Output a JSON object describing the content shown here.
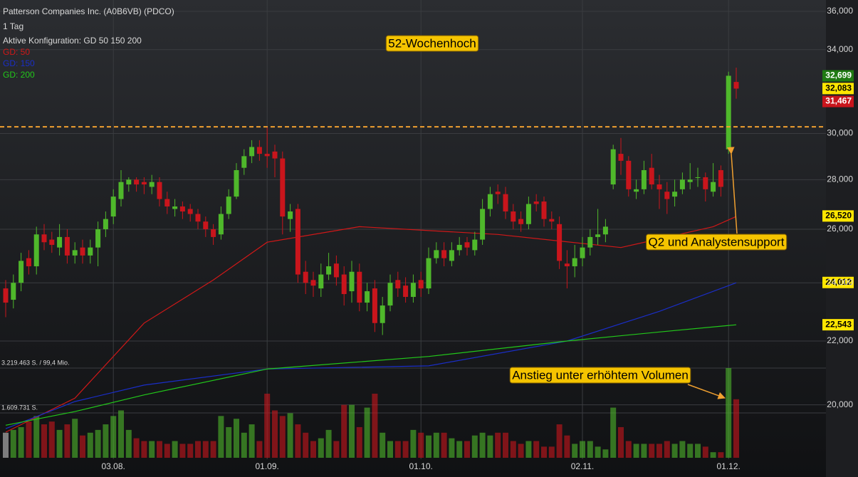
{
  "chart_data": {
    "type": "candlestick",
    "title": "Patterson Companies Inc. (A0B6VB) (PDCO)",
    "subtitle": "1 Tag",
    "config_label": "Aktive Konfiguration: GD 50 150 200",
    "log": true,
    "grid": true,
    "up_color": "#4fb82b",
    "down_color": "#c9151c",
    "categories": [
      null,
      null,
      null,
      null,
      null,
      null,
      null,
      null,
      null,
      null,
      null,
      null,
      null,
      null,
      "03.08.",
      null,
      null,
      null,
      null,
      null,
      null,
      null,
      null,
      null,
      null,
      null,
      null,
      null,
      null,
      null,
      null,
      null,
      null,
      null,
      "01.09.",
      null,
      null,
      null,
      null,
      null,
      null,
      null,
      null,
      null,
      null,
      null,
      null,
      null,
      null,
      null,
      null,
      null,
      null,
      null,
      "01.10.",
      null,
      null,
      null,
      null,
      null,
      null,
      null,
      null,
      null,
      null,
      null,
      null,
      null,
      null,
      null,
      null,
      null,
      null,
      null,
      null,
      "02.11.",
      null,
      null,
      null,
      null,
      null,
      null,
      null,
      null,
      null,
      null,
      null,
      null,
      null,
      null,
      null,
      null,
      null,
      null,
      "01.12.",
      null
    ],
    "open": [
      23.8,
      23.4,
      24.0,
      24.9,
      24.6,
      25.8,
      25.6,
      25.3,
      25.7,
      25.0,
      25.3,
      25.0,
      25.3,
      26.0,
      26.5,
      27.2,
      27.8,
      28.0,
      27.9,
      27.7,
      27.9,
      27.2,
      26.8,
      26.9,
      26.8,
      26.6,
      26.3,
      26.0,
      25.8,
      26.6,
      27.3,
      28.5,
      29.0,
      29.4,
      29.1,
      29.2,
      28.9,
      26.4,
      26.8,
      24.4,
      24.1,
      23.8,
      24.3,
      24.7,
      24.3,
      23.7,
      24.4,
      23.3,
      23.8,
      22.6,
      23.2,
      24.1,
      23.9,
      23.5,
      24.1,
      23.8,
      24.9,
      25.2,
      24.8,
      25.2,
      25.5,
      25.2,
      25.6,
      26.8,
      27.5,
      27.4,
      26.7,
      26.4,
      26.2,
      27.1,
      27.1,
      26.4,
      26.2,
      24.7,
      24.6,
      24.9,
      25.3,
      25.7,
      25.8,
      27.8,
      29.1,
      28.8,
      27.5,
      27.6,
      28.5,
      27.8,
      27.5,
      27.3,
      27.6,
      27.9,
      28.1,
      28.1,
      27.5,
      28.4,
      29.3,
      32.4
    ],
    "high": [
      24.1,
      24.3,
      25.1,
      25.2,
      26.1,
      26.2,
      25.9,
      26.2,
      26.0,
      25.5,
      25.6,
      25.6,
      26.3,
      26.7,
      27.6,
      28.4,
      28.1,
      28.1,
      28.1,
      28.2,
      28.1,
      27.5,
      27.2,
      27.1,
      27.0,
      26.8,
      26.5,
      26.2,
      26.9,
      27.6,
      28.7,
      29.3,
      29.7,
      29.7,
      30.3,
      29.5,
      29.2,
      27.0,
      27.0,
      24.8,
      24.4,
      24.7,
      25.1,
      25.0,
      24.6,
      24.8,
      24.7,
      24.0,
      24.1,
      23.5,
      24.3,
      24.4,
      24.2,
      24.3,
      24.4,
      25.3,
      25.5,
      25.5,
      25.5,
      25.7,
      25.7,
      25.9,
      27.2,
      27.7,
      27.8,
      27.7,
      27.0,
      26.7,
      27.3,
      27.4,
      27.3,
      26.7,
      26.5,
      25.2,
      25.4,
      25.7,
      26.0,
      26.8,
      26.4,
      29.5,
      29.8,
      29.0,
      28.0,
      28.8,
      29.1,
      28.2,
      27.9,
      28.0,
      28.3,
      28.7,
      28.5,
      28.3,
      28.7,
      28.6,
      32.9,
      33.1
    ],
    "low": [
      22.8,
      23.1,
      23.7,
      24.3,
      24.3,
      25.2,
      25.1,
      25.0,
      24.7,
      24.7,
      24.7,
      24.7,
      24.6,
      25.7,
      26.2,
      26.9,
      27.5,
      27.5,
      27.4,
      27.4,
      26.9,
      26.6,
      26.5,
      26.4,
      26.3,
      26.0,
      25.7,
      25.4,
      25.6,
      26.4,
      27.2,
      28.2,
      28.7,
      28.8,
      28.5,
      28.1,
      25.8,
      25.9,
      24.0,
      23.6,
      23.5,
      23.5,
      24.1,
      23.9,
      23.2,
      23.3,
      23.0,
      23.0,
      22.3,
      22.2,
      23.0,
      23.5,
      23.3,
      23.3,
      23.5,
      23.6,
      24.7,
      24.6,
      24.6,
      25.0,
      25.0,
      25.0,
      25.4,
      26.5,
      27.0,
      26.4,
      26.0,
      25.9,
      26.0,
      26.7,
      26.1,
      26.0,
      24.5,
      23.8,
      24.2,
      24.6,
      25.0,
      25.4,
      25.5,
      27.6,
      28.2,
      27.3,
      27.2,
      27.4,
      27.6,
      26.8,
      26.6,
      26.9,
      27.4,
      27.6,
      27.7,
      27.1,
      27.3,
      27.3,
      29.1,
      31.6
    ],
    "close": [
      23.3,
      24.0,
      24.8,
      24.6,
      25.8,
      25.5,
      25.4,
      25.7,
      25.0,
      25.2,
      25.0,
      25.3,
      26.0,
      26.4,
      27.3,
      27.9,
      28.0,
      27.8,
      27.8,
      27.9,
      27.2,
      26.9,
      26.9,
      26.7,
      26.6,
      26.3,
      26.0,
      25.7,
      26.6,
      27.3,
      28.4,
      29.0,
      29.4,
      29.1,
      29.0,
      28.9,
      26.5,
      26.7,
      24.3,
      24.0,
      23.9,
      24.3,
      24.6,
      24.2,
      23.6,
      24.4,
      23.3,
      23.7,
      22.6,
      23.2,
      24.0,
      23.8,
      23.5,
      24.0,
      23.8,
      24.9,
      25.2,
      24.9,
      25.2,
      25.4,
      25.3,
      25.6,
      26.8,
      27.4,
      27.4,
      26.7,
      26.3,
      26.2,
      27.0,
      27.0,
      26.4,
      26.3,
      24.8,
      24.6,
      24.9,
      25.3,
      25.7,
      25.8,
      26.1,
      29.3,
      28.8,
      27.6,
      27.6,
      28.4,
      27.8,
      27.6,
      27.2,
      27.5,
      28.0,
      28.0,
      28.1,
      27.6,
      27.9,
      27.7,
      32.7,
      32.08
    ],
    "volume": [
      900000,
      1000000,
      1100000,
      1300000,
      1500000,
      1200000,
      1300000,
      1000000,
      1200000,
      1400000,
      800000,
      900000,
      1000000,
      1200000,
      1500000,
      1700000,
      1000000,
      700000,
      600000,
      600000,
      600000,
      500000,
      600000,
      500000,
      500000,
      600000,
      600000,
      600000,
      1500000,
      1100000,
      1400000,
      900000,
      1200000,
      600000,
      2300000,
      1700000,
      1500000,
      1600000,
      1200000,
      900000,
      600000,
      700000,
      1000000,
      600000,
      1900000,
      1900000,
      1100000,
      1800000,
      2300000,
      900000,
      600000,
      600000,
      600000,
      1000000,
      900000,
      800000,
      900000,
      900000,
      700000,
      600000,
      600000,
      800000,
      900000,
      800000,
      900000,
      900000,
      600000,
      500000,
      600000,
      600000,
      400000,
      400000,
      1200000,
      800000,
      500000,
      600000,
      600000,
      400000,
      300000,
      1800000,
      1100000,
      600000,
      500000,
      500000,
      500000,
      500000,
      600000,
      500000,
      600000,
      500000,
      500000,
      400000,
      200000,
      200000,
      3219463,
      2100000
    ],
    "ylim": [
      18.44,
      36.62
    ],
    "yticks": [
      {
        "value": 36,
        "label": "36,000"
      },
      {
        "value": 34,
        "label": "34,000"
      },
      {
        "value": 30,
        "label": "30,000"
      },
      {
        "value": 28,
        "label": "28,000"
      },
      {
        "value": 26,
        "label": "26,000"
      },
      {
        "value": 24,
        "label": "24,000"
      },
      {
        "value": 22,
        "label": "22,000"
      },
      {
        "value": 20,
        "label": "20,000"
      }
    ],
    "volume_ticks": [
      {
        "value": 3219463,
        "label": "3.219.463 S. / 99,4 Mio."
      },
      {
        "value": 1609731,
        "label": "1.609.731 S."
      }
    ],
    "series": [
      {
        "name": "GD: 50",
        "color": "#d01818",
        "x": [
          0,
          9,
          18,
          27,
          34,
          46,
          64,
          80,
          92,
          95
        ],
        "values": [
          19.2,
          20.2,
          22.6,
          24.1,
          25.5,
          26.1,
          25.8,
          25.3,
          26.1,
          26.5
        ]
      },
      {
        "name": "GD: 150",
        "color": "#1a2ec8",
        "x": [
          0,
          9,
          18,
          34,
          55,
          73,
          85,
          95
        ],
        "values": [
          19.3,
          20.1,
          20.6,
          21.1,
          21.2,
          22.0,
          23.0,
          24.0
        ]
      },
      {
        "name": "GD: 200",
        "color": "#22c81a",
        "x": [
          0,
          9,
          18,
          34,
          55,
          73,
          85,
          95
        ],
        "values": [
          19.4,
          19.8,
          20.3,
          21.1,
          21.5,
          22.0,
          22.3,
          22.54
        ]
      }
    ],
    "resistance": 30.3,
    "price_labels": [
      {
        "value": 32.699,
        "label": "32,699",
        "color": "#1f7a12",
        "text_color": "#ffffff"
      },
      {
        "value": 32.083,
        "label": "32,083",
        "color": "#ffe600",
        "text_color": "#000000"
      },
      {
        "value": 31.467,
        "label": "31,467",
        "color": "#c9151c",
        "text_color": "#ffffff"
      },
      {
        "value": 26.52,
        "label": "26,520",
        "color": "#ffe600",
        "text_color": "#000000"
      },
      {
        "value": 24.012,
        "label": "24,012",
        "color": "#ffe600",
        "text_color": "#000000"
      },
      {
        "value": 22.543,
        "label": "22,543",
        "color": "#ffe600",
        "text_color": "#000000"
      }
    ],
    "annotations": [
      {
        "text": "52-Wochenhoch"
      },
      {
        "text": "Q2 und Analystensupport"
      },
      {
        "text": "Anstieg unter erhöhtem Volumen"
      }
    ]
  }
}
